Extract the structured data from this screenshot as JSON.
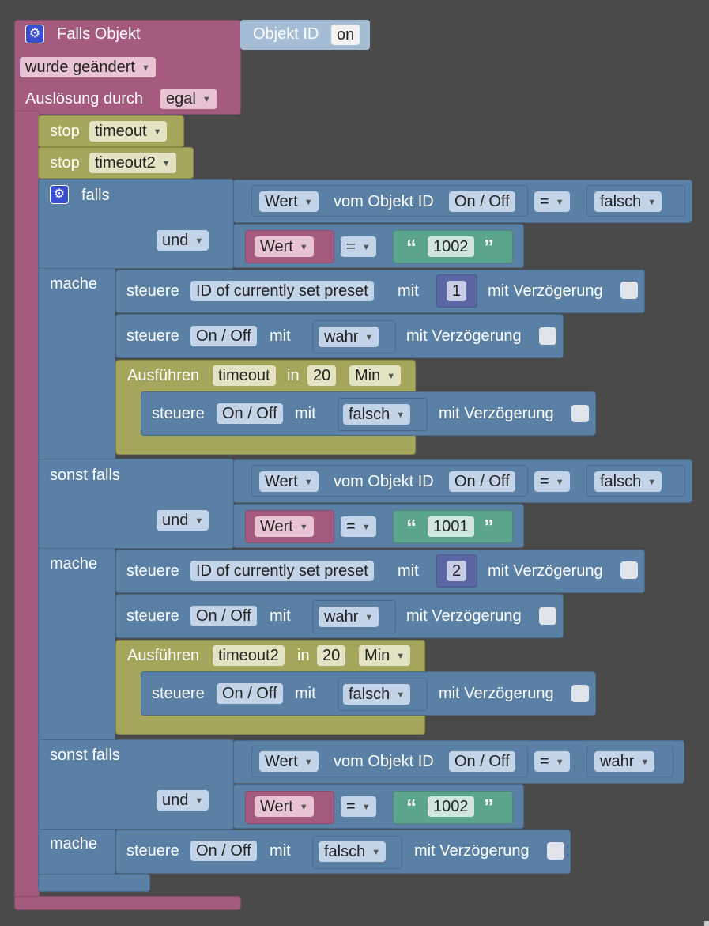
{
  "event": {
    "title": "Falls Objekt",
    "object_id_label": "Objekt ID",
    "object_id_value": "on",
    "changed": "wurde geändert",
    "trigger_label": "Auslösung durch",
    "trigger_value": "egal"
  },
  "stops": [
    {
      "label": "stop",
      "timer": "timeout"
    },
    {
      "label": "stop",
      "timer": "timeout2"
    }
  ],
  "branches": [
    {
      "if_label": "falls",
      "c1": {
        "wert": "Wert",
        "vom": "vom Objekt ID",
        "obj": "On / Off",
        "op": "=",
        "val": "falsch"
      },
      "and_label": "und",
      "c2": {
        "wert": "Wert",
        "op": "=",
        "text": "1002"
      },
      "do_label": "mache",
      "s1": {
        "label": "steuere",
        "obj": "ID of currently set preset",
        "mit": "mit",
        "val": "1",
        "delay": "mit Verzögerung"
      },
      "s2": {
        "label": "steuere",
        "obj": "On / Off",
        "mit": "mit",
        "val": "wahr",
        "delay": "mit Verzögerung"
      },
      "timer": {
        "label": "Ausführen",
        "name": "timeout",
        "in": "in",
        "num": "20",
        "unit": "Min"
      },
      "s3": {
        "label": "steuere",
        "obj": "On / Off",
        "mit": "mit",
        "val": "falsch",
        "delay": "mit Verzögerung"
      }
    },
    {
      "if_label": "sonst falls",
      "c1": {
        "wert": "Wert",
        "vom": "vom Objekt ID",
        "obj": "On / Off",
        "op": "=",
        "val": "falsch"
      },
      "and_label": "und",
      "c2": {
        "wert": "Wert",
        "op": "=",
        "text": "1001"
      },
      "do_label": "mache",
      "s1": {
        "label": "steuere",
        "obj": "ID of currently set preset",
        "mit": "mit",
        "val": "2",
        "delay": "mit Verzögerung"
      },
      "s2": {
        "label": "steuere",
        "obj": "On / Off",
        "mit": "mit",
        "val": "wahr",
        "delay": "mit Verzögerung"
      },
      "timer": {
        "label": "Ausführen",
        "name": "timeout2",
        "in": "in",
        "num": "20",
        "unit": "Min"
      },
      "s3": {
        "label": "steuere",
        "obj": "On / Off",
        "mit": "mit",
        "val": "falsch",
        "delay": "mit Verzögerung"
      }
    },
    {
      "if_label": "sonst falls",
      "c1": {
        "wert": "Wert",
        "vom": "vom Objekt ID",
        "obj": "On / Off",
        "op": "=",
        "val": "wahr"
      },
      "and_label": "und",
      "c2": {
        "wert": "Wert",
        "op": "=",
        "text": "1002"
      },
      "do_label": "mache",
      "s1": {
        "label": "steuere",
        "obj": "On / Off",
        "mit": "mit",
        "val": "falsch",
        "delay": "mit Verzögerung"
      }
    }
  ],
  "colors": {
    "event": "#a55b80",
    "logic": "#5b80a5",
    "timer": "#a5a55b",
    "text": "#5ba58c",
    "number": "#5b67a5",
    "background": "#4a4a4a"
  }
}
